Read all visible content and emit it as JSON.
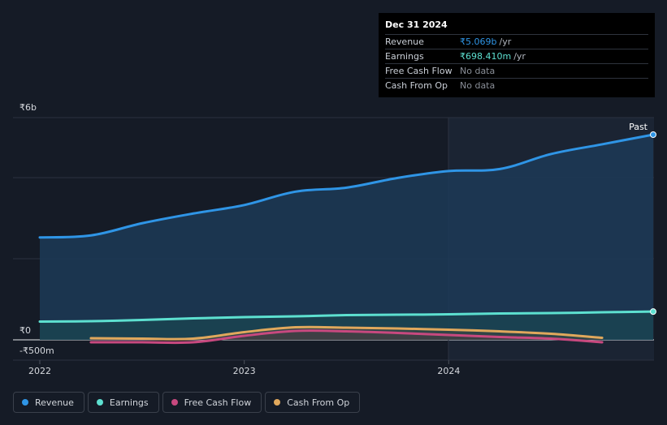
{
  "tooltip": {
    "date": "Dec 31 2024",
    "rows": [
      {
        "label": "Revenue",
        "value": "₹5.069b",
        "unit": "/yr",
        "color": "#2f95e6"
      },
      {
        "label": "Earnings",
        "value": "₹698.410m",
        "unit": "/yr",
        "color": "#5de0d0"
      },
      {
        "label": "Free Cash Flow",
        "value": "No data",
        "unit": "",
        "color": "#8a8f98"
      },
      {
        "label": "Cash From Op",
        "value": "No data",
        "unit": "",
        "color": "#8a8f98"
      }
    ]
  },
  "legend": [
    {
      "label": "Revenue",
      "color": "#2f95e6"
    },
    {
      "label": "Earnings",
      "color": "#5de0d0"
    },
    {
      "label": "Free Cash Flow",
      "color": "#c8497f"
    },
    {
      "label": "Cash From Op",
      "color": "#e0a85c"
    }
  ],
  "chart_data": {
    "type": "line",
    "title": "",
    "xlabel": "",
    "ylabel": "",
    "x_ticks": [
      {
        "label": "2022",
        "x": 2022.0
      },
      {
        "label": "2023",
        "x": 2023.0
      },
      {
        "label": "2024",
        "x": 2024.0
      }
    ],
    "y_ticks": [
      {
        "label": "₹6b",
        "value": 6000
      },
      {
        "label": "₹0",
        "value": 0
      },
      {
        "label": "-₹500m",
        "value": -500
      }
    ],
    "xlim": [
      2021.87,
      2025.0
    ],
    "ylim": [
      -500,
      5500
    ],
    "past_label": "Past",
    "series": [
      {
        "name": "Revenue",
        "color": "#2f95e6",
        "area": true,
        "end_marker": true,
        "points": [
          [
            2022.0,
            2530
          ],
          [
            2022.25,
            2580
          ],
          [
            2022.5,
            2880
          ],
          [
            2022.75,
            3120
          ],
          [
            2023.0,
            3330
          ],
          [
            2023.25,
            3660
          ],
          [
            2023.5,
            3760
          ],
          [
            2023.75,
            4000
          ],
          [
            2024.0,
            4170
          ],
          [
            2024.25,
            4220
          ],
          [
            2024.5,
            4590
          ],
          [
            2024.75,
            4830
          ],
          [
            2025.0,
            5069
          ]
        ]
      },
      {
        "name": "Earnings",
        "color": "#5de0d0",
        "area": true,
        "end_marker": true,
        "points": [
          [
            2022.0,
            450
          ],
          [
            2022.25,
            460
          ],
          [
            2022.5,
            490
          ],
          [
            2022.75,
            530
          ],
          [
            2023.0,
            560
          ],
          [
            2023.25,
            580
          ],
          [
            2023.5,
            610
          ],
          [
            2023.75,
            620
          ],
          [
            2024.0,
            630
          ],
          [
            2024.25,
            650
          ],
          [
            2024.5,
            660
          ],
          [
            2024.75,
            680
          ],
          [
            2025.0,
            698.41
          ]
        ]
      },
      {
        "name": "Free Cash Flow",
        "color": "#c8497f",
        "area": true,
        "end_marker": false,
        "points": [
          [
            2022.25,
            -60
          ],
          [
            2022.5,
            -60
          ],
          [
            2022.75,
            -60
          ],
          [
            2023.0,
            100
          ],
          [
            2023.25,
            220
          ],
          [
            2023.5,
            210
          ],
          [
            2023.75,
            170
          ],
          [
            2024.0,
            120
          ],
          [
            2024.25,
            70
          ],
          [
            2024.5,
            30
          ],
          [
            2024.75,
            -60
          ]
        ]
      },
      {
        "name": "Cash From Op",
        "color": "#e0a85c",
        "area": true,
        "end_marker": false,
        "points": [
          [
            2022.25,
            40
          ],
          [
            2022.5,
            30
          ],
          [
            2022.75,
            30
          ],
          [
            2023.0,
            190
          ],
          [
            2023.25,
            310
          ],
          [
            2023.5,
            300
          ],
          [
            2023.75,
            280
          ],
          [
            2024.0,
            250
          ],
          [
            2024.25,
            210
          ],
          [
            2024.5,
            150
          ],
          [
            2024.75,
            50
          ]
        ]
      }
    ]
  }
}
